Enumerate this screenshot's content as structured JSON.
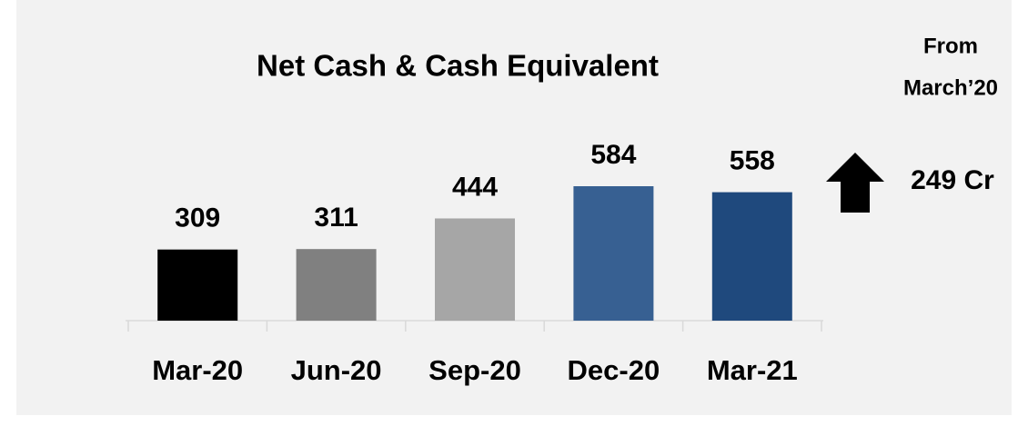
{
  "chart_data": {
    "type": "bar",
    "title": "Net Cash & Cash Equivalent",
    "categories": [
      "Mar-20",
      "Jun-20",
      "Sep-20",
      "Dec-20",
      "Mar-21"
    ],
    "values": [
      309,
      311,
      444,
      584,
      558
    ],
    "colors": [
      "#000000",
      "#808080",
      "#a6a6a6",
      "#376092",
      "#1f497d"
    ],
    "annotation": {
      "text": [
        "From",
        "March’20"
      ],
      "change": "249 Cr"
    }
  }
}
